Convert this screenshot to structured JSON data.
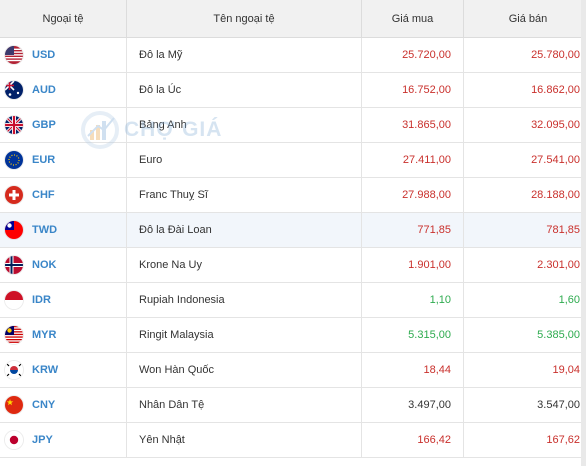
{
  "headers": {
    "code": "Ngoại tệ",
    "name": "Tên ngoại tệ",
    "buy": "Giá mua",
    "sell": "Giá bán"
  },
  "watermark": "CHỢ GIÁ",
  "rows": [
    {
      "code": "USD",
      "name": "Đô la Mỹ",
      "buy": "25.720,00",
      "sell": "25.780,00",
      "color": "red",
      "flag": "us-flag-icon"
    },
    {
      "code": "AUD",
      "name": "Đô la Úc",
      "buy": "16.752,00",
      "sell": "16.862,00",
      "color": "red",
      "flag": "au-flag-icon"
    },
    {
      "code": "GBP",
      "name": "Bảng Anh",
      "buy": "31.865,00",
      "sell": "32.095,00",
      "color": "red",
      "flag": "gb-flag-icon"
    },
    {
      "code": "EUR",
      "name": "Euro",
      "buy": "27.411,00",
      "sell": "27.541,00",
      "color": "red",
      "flag": "eu-flag-icon"
    },
    {
      "code": "CHF",
      "name": "Franc Thuỵ Sĩ",
      "buy": "27.988,00",
      "sell": "28.188,00",
      "color": "red",
      "flag": "ch-flag-icon"
    },
    {
      "code": "TWD",
      "name": "Đô la Đài Loan",
      "buy": "771,85",
      "sell": "781,85",
      "color": "red",
      "flag": "tw-flag-icon"
    },
    {
      "code": "NOK",
      "name": "Krone Na Uy",
      "buy": "1.901,00",
      "sell": "2.301,00",
      "color": "red",
      "flag": "no-flag-icon"
    },
    {
      "code": "IDR",
      "name": "Rupiah Indonesia",
      "buy": "1,10",
      "sell": "1,60",
      "color": "green",
      "flag": "id-flag-icon"
    },
    {
      "code": "MYR",
      "name": "Ringit Malaysia",
      "buy": "5.315,00",
      "sell": "5.385,00",
      "color": "green",
      "flag": "my-flag-icon"
    },
    {
      "code": "KRW",
      "name": "Won Hàn Quốc",
      "buy": "18,44",
      "sell": "19,04",
      "color": "red",
      "flag": "kr-flag-icon"
    },
    {
      "code": "CNY",
      "name": "Nhân Dân Tệ",
      "buy": "3.497,00",
      "sell": "3.547,00",
      "color": "dark",
      "flag": "cn-flag-icon"
    },
    {
      "code": "JPY",
      "name": "Yên Nhật",
      "buy": "166,42",
      "sell": "167,62",
      "color": "red",
      "flag": "jp-flag-icon"
    }
  ],
  "colors": {
    "red": "#c9302c",
    "green": "#2eab4f",
    "code": "#3a86c8"
  }
}
